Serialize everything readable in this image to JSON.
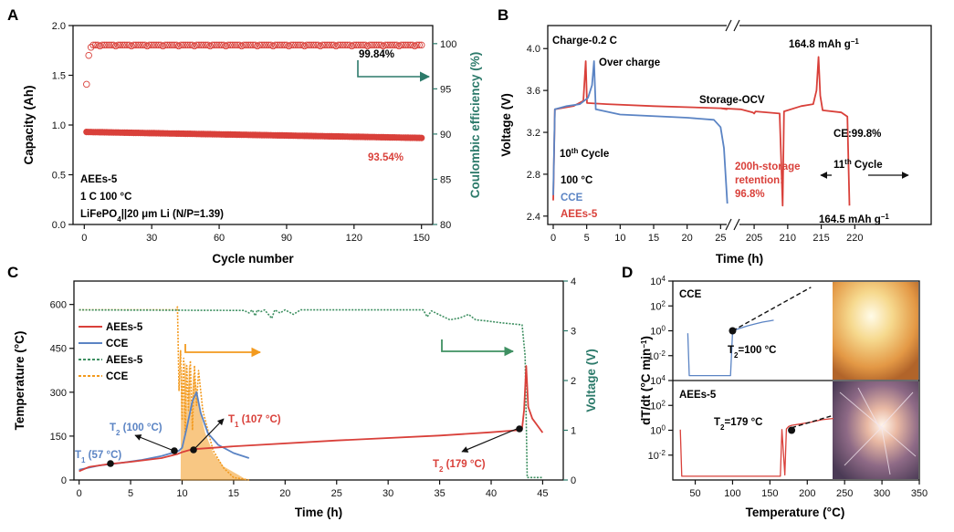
{
  "colors": {
    "red": "#d9403a",
    "blue": "#5b84c4",
    "orange": "#f39a1e",
    "green": "#3f9062",
    "teal": "#2c7a6a",
    "black": "#111111",
    "photo_top": "#f4c77a",
    "photo_bottom": "#7c5a77"
  },
  "chart_data": [
    {
      "panel": "A",
      "type": "scatter",
      "xlabel": "Cycle number",
      "ylabel": "Capacity (Ah)",
      "y2label": "Coulombic efficiency (%)",
      "xlim": [
        -5,
        155
      ],
      "ylim": [
        0,
        2.0
      ],
      "y2lim": [
        80,
        102
      ],
      "xticks": [
        "0",
        "30",
        "60",
        "90",
        "120",
        "150"
      ],
      "yticks": [
        "0.0",
        "0.5",
        "1.0",
        "1.5",
        "2.0"
      ],
      "y2ticks": [
        "80",
        "85",
        "90",
        "95",
        "100"
      ],
      "series": [
        {
          "name": "Capacity",
          "color": "red",
          "axis": "left",
          "x_range": [
            1,
            150
          ],
          "start": 0.93,
          "end": 0.87
        },
        {
          "name": "Coulombic efficiency",
          "color": "red",
          "axis": "right",
          "x_range": [
            1,
            150
          ],
          "first_values": [
            95.5,
            98.7,
            99.6
          ],
          "value": 99.84
        }
      ],
      "annotations": {
        "ce_label": "99.84%",
        "cap_label": "93.54%",
        "line1": "AEEs-5",
        "line2": "1 C   100 °C",
        "line3_a": "LiFePO",
        "line3_sub": "4",
        "line3_b": "||20 μm Li   (N/P=1.39)"
      }
    },
    {
      "panel": "B",
      "type": "line",
      "xlabel": "Time (h)",
      "ylabel": "Voltage (V)",
      "xticks": [
        "0",
        "5",
        "10",
        "15",
        "20",
        "25",
        "205",
        "210",
        "215",
        "220"
      ],
      "yticks": [
        "2.4",
        "2.8",
        "3.2",
        "3.6",
        "4.0"
      ],
      "ylim": [
        2.32,
        4.22
      ],
      "series": [
        {
          "name": "CCE",
          "color": "blue",
          "points": [
            [
              0,
              2.6
            ],
            [
              0.25,
              3.42
            ],
            [
              2,
              3.45
            ],
            [
              4,
              3.47
            ],
            [
              5.2,
              3.53
            ],
            [
              5.8,
              3.65
            ],
            [
              6.1,
              3.88
            ],
            [
              6.35,
              3.42
            ],
            [
              10,
              3.37
            ],
            [
              20,
              3.34
            ],
            [
              24,
              3.32
            ],
            [
              25,
              3.25
            ],
            [
              25.5,
              3.05
            ],
            [
              26,
              2.52
            ]
          ]
        },
        {
          "name": "AEEs-5",
          "color": "red",
          "points": [
            [
              0,
              2.55
            ],
            [
              0.25,
              3.42
            ],
            [
              3,
              3.45
            ],
            [
              4.5,
              3.5
            ],
            [
              4.85,
              3.88
            ],
            [
              5.05,
              3.48
            ],
            [
              8,
              3.47
            ],
            [
              15,
              3.45
            ],
            [
              25,
              3.43
            ],
            [
              26,
              3.42
            ]
          ]
        },
        {
          "name": "AEEs-5 storage",
          "color": "red",
          "points": [
            [
              200,
              3.43
            ],
            [
              203,
              3.42
            ],
            [
              204.8,
              3.39
            ],
            [
              205,
              3.38
            ],
            [
              205.2,
              3.4
            ],
            [
              208.8,
              3.38
            ],
            [
              209.25,
              2.5
            ],
            [
              209.45,
              3.4
            ],
            [
              212,
              3.45
            ],
            [
              213.8,
              3.47
            ],
            [
              214.3,
              3.6
            ],
            [
              214.6,
              3.92
            ],
            [
              214.85,
              3.55
            ],
            [
              215.2,
              3.41
            ],
            [
              218,
              3.39
            ],
            [
              218.9,
              3.35
            ],
            [
              219.2,
              2.5
            ]
          ]
        }
      ],
      "annotations": {
        "charge": "Charge-0.2 C",
        "overcharge": "Over charge",
        "storage": "Storage-OCV",
        "cap_top": "164.8 mAh g",
        "cap_bottom": "164.5 mAh g",
        "sup_minus1": "−1",
        "ce": "CE:99.8%",
        "cycle10_a": "10",
        "cycle10_sup": "th",
        "cycle10_b": " Cycle",
        "cycle11_a": "11",
        "cycle11_sup": "th",
        "cycle11_b": " Cycle",
        "temp": "100 °C",
        "retention_1": "200h-storage",
        "retention_2": "retention:",
        "retention_3": "96.8%",
        "legend_cce": "CCE",
        "legend_aees": "AEEs-5"
      }
    },
    {
      "panel": "C",
      "type": "line",
      "xlabel": "Time (h)",
      "ylabel": "Temperature (°C)",
      "y2label": "Voltage (V)",
      "xlim": [
        -0.5,
        47
      ],
      "ylim": [
        0,
        680
      ],
      "y2lim": [
        0,
        4
      ],
      "xticks": [
        "0",
        "5",
        "10",
        "15",
        "20",
        "25",
        "30",
        "35",
        "40",
        "45"
      ],
      "yticks": [
        "0",
        "150",
        "300",
        "450",
        "600"
      ],
      "y2ticks": [
        "0",
        "1",
        "2",
        "3",
        "4"
      ],
      "legend": [
        "AEEs-5",
        "CCE",
        "AEEs-5",
        "CCE"
      ],
      "series": [
        {
          "name": "AEEs-5 temperature",
          "color": "red",
          "style": "solid",
          "points": [
            [
              0,
              30
            ],
            [
              1,
              45
            ],
            [
              3,
              55
            ],
            [
              5,
              62
            ],
            [
              8,
              75
            ],
            [
              9.5,
              88
            ],
            [
              10,
              95
            ],
            [
              11,
              105
            ],
            [
              15,
              115
            ],
            [
              25,
              135
            ],
            [
              35,
              152
            ],
            [
              40,
              163
            ],
            [
              42.5,
              170
            ],
            [
              43,
              176
            ],
            [
              43.2,
              240
            ],
            [
              43.4,
              390
            ],
            [
              43.6,
              250
            ],
            [
              44,
              210
            ],
            [
              45,
              162
            ]
          ]
        },
        {
          "name": "CCE temperature",
          "color": "blue",
          "style": "solid",
          "points": [
            [
              0,
              35
            ],
            [
              2,
              50
            ],
            [
              4,
              58
            ],
            [
              6,
              68
            ],
            [
              8,
              82
            ],
            [
              9.3,
              95
            ],
            [
              9.7,
              100
            ],
            [
              10,
              110
            ],
            [
              10.4,
              170
            ],
            [
              11,
              270
            ],
            [
              11.4,
              300
            ],
            [
              11.8,
              230
            ],
            [
              12.5,
              160
            ],
            [
              13.5,
              120
            ],
            [
              15,
              92
            ],
            [
              16.5,
              75
            ]
          ]
        },
        {
          "name": "AEEs-5 voltage",
          "color": "green",
          "style": "dotted",
          "points": [
            [
              0,
              3.42
            ],
            [
              16,
              3.41
            ],
            [
              16.5,
              3.36
            ],
            [
              16.8,
              3.42
            ],
            [
              17.1,
              3.3
            ],
            [
              17.3,
              3.42
            ],
            [
              17.6,
              3.38
            ],
            [
              18,
              3.42
            ],
            [
              18.7,
              3.25
            ],
            [
              19,
              3.42
            ],
            [
              19.5,
              3.36
            ],
            [
              20,
              3.42
            ],
            [
              20.8,
              3.33
            ],
            [
              21.5,
              3.42
            ],
            [
              33.4,
              3.42
            ],
            [
              33.8,
              3.28
            ],
            [
              34.2,
              3.4
            ],
            [
              35,
              3.32
            ],
            [
              36,
              3.22
            ],
            [
              37,
              3.26
            ],
            [
              37.8,
              3.33
            ],
            [
              38.5,
              3.22
            ],
            [
              39.5,
              3.2
            ],
            [
              41,
              3.16
            ],
            [
              42.5,
              3.13
            ],
            [
              43,
              3.12
            ],
            [
              43.3,
              2.5
            ],
            [
              43.5,
              0.05
            ],
            [
              45,
              0.05
            ]
          ]
        },
        {
          "name": "CCE voltage",
          "color": "orange",
          "style": "dotted",
          "points": [
            [
              0,
              3.42
            ],
            [
              9.4,
              3.42
            ],
            [
              9.55,
              3.48
            ],
            [
              9.7,
              1.8
            ],
            [
              9.85,
              2.6
            ],
            [
              10,
              1.2
            ],
            [
              10.15,
              2.45
            ],
            [
              10.3,
              0.9
            ],
            [
              10.45,
              2.3
            ],
            [
              10.6,
              1.4
            ],
            [
              10.8,
              2.4
            ],
            [
              11,
              1.0
            ],
            [
              11.2,
              2.3
            ],
            [
              11.4,
              1.5
            ],
            [
              11.6,
              2.2
            ],
            [
              12,
              1.4
            ],
            [
              12.5,
              1.0
            ],
            [
              13,
              0.6
            ],
            [
              14,
              0.25
            ],
            [
              15,
              0.05
            ],
            [
              16.5,
              0.0
            ]
          ]
        }
      ],
      "annotations": {
        "t1_cce_a": "T",
        "t1_cce_sub": "1",
        "t1_cce_b": " (57 °C)",
        "t2_cce_a": "T",
        "t2_cce_sub": "2",
        "t2_cce_b": " (100 °C)",
        "t1_aees_a": "T",
        "t1_aees_sub": "1",
        "t1_aees_b": " (107 °C)",
        "t2_aees_a": "T",
        "t2_aees_sub": "2",
        "t2_aees_b": " (179 °C)"
      }
    },
    {
      "panel": "D",
      "type": "line",
      "xlabel": "Temperature (°C)",
      "ylabel": "dT/dt (°C min",
      "ylabel_sup": "−1",
      "ylabel_end": ")",
      "xlim": [
        20,
        350
      ],
      "ylim_log10": [
        -4,
        4
      ],
      "xticks": [
        "50",
        "100",
        "150",
        "200",
        "250",
        "300",
        "350"
      ],
      "ytick_exps": [
        "4",
        "2",
        "0",
        "-2"
      ],
      "subpanels": [
        {
          "name": "CCE",
          "color": "blue",
          "label": "CCE",
          "t2_a": "T",
          "t2_sub": "2",
          "t2_b": "=100 °C",
          "t2_x": 100,
          "t2_log": 0
        },
        {
          "name": "AEEs-5",
          "color": "red",
          "label": "AEEs-5",
          "t2_a": "T",
          "t2_sub": "2",
          "t2_b": "=179 °C",
          "t2_x": 179,
          "t2_log": 0
        }
      ]
    }
  ]
}
